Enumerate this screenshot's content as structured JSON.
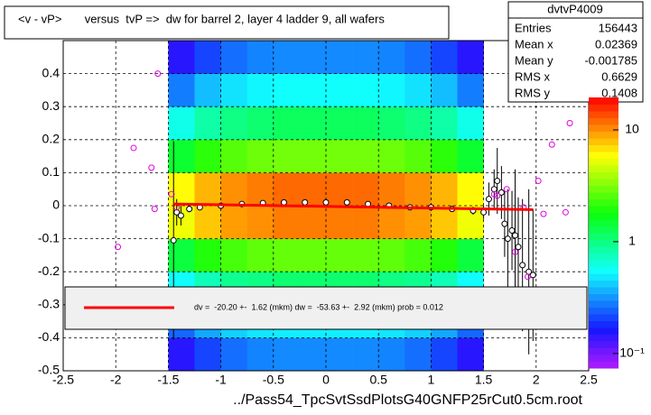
{
  "chart_data": {
    "type": "heatmap",
    "title": "<v - vP>       versus  tvP =>  dw for barrel 2, layer 4 ladder 9, all wafers",
    "x_label": "../Pass54_TpcSvtSsdPlotsG40GNFP25rCut0.5cm.root",
    "xlim": [
      -2.5,
      2.5
    ],
    "xticks": [
      -2.5,
      -2,
      -1.5,
      -1,
      -0.5,
      0,
      0.5,
      1,
      1.5,
      2,
      2.5
    ],
    "ylim": [
      -0.5,
      0.5
    ],
    "yticks": [
      -0.5,
      -0.4,
      -0.3,
      -0.2,
      -0.1,
      0,
      0.1,
      0.2,
      0.3,
      0.4
    ],
    "grid": true,
    "xbins": [
      -1.5,
      -1.25,
      -1,
      -0.75,
      -0.5,
      -0.25,
      0,
      0.25,
      0.5,
      0.75,
      1,
      1.25,
      1.5
    ],
    "ybins": [
      -0.5,
      -0.4,
      -0.3,
      -0.2,
      -0.1,
      0,
      0.1,
      0.2,
      0.3,
      0.4,
      0.5
    ],
    "z": [
      [
        0.15,
        0.21,
        0.26,
        0.29,
        0.3,
        0.3,
        0.3,
        0.3,
        0.29,
        0.26,
        0.21,
        0.15
      ],
      [
        0.25,
        0.35,
        0.43,
        0.48,
        0.5,
        0.5,
        0.5,
        0.5,
        0.48,
        0.43,
        0.35,
        0.25
      ],
      [
        0.55,
        0.77,
        0.94,
        1.0,
        1.1,
        1.1,
        1.1,
        1.1,
        1.0,
        0.94,
        0.77,
        0.55
      ],
      [
        1.4,
        2.0,
        2.4,
        2.7,
        2.8,
        2.8,
        2.8,
        2.8,
        2.7,
        2.4,
        2.0,
        1.4
      ],
      [
        5.5,
        7.7,
        9.4,
        10,
        11,
        11,
        11,
        11,
        10,
        9.4,
        7.7,
        5.5
      ],
      [
        6,
        8.4,
        10,
        11,
        12,
        12,
        12,
        12,
        11,
        10,
        8.4,
        6
      ],
      [
        1.5,
        2.1,
        2.6,
        2.9,
        3,
        3,
        3,
        3,
        2.9,
        2.6,
        2.1,
        1.5
      ],
      [
        0.6,
        0.84,
        1.0,
        1.1,
        1.2,
        1.2,
        1.2,
        1.2,
        1.1,
        1.0,
        0.84,
        0.6
      ],
      [
        0.28,
        0.39,
        0.47,
        0.52,
        0.55,
        0.55,
        0.55,
        0.55,
        0.52,
        0.47,
        0.39,
        0.28
      ],
      [
        0.15,
        0.21,
        0.26,
        0.29,
        0.3,
        0.3,
        0.3,
        0.3,
        0.29,
        0.26,
        0.21,
        0.15
      ]
    ],
    "zlim": [
      0.074,
      19.5
    ],
    "zscale": "log",
    "zticks": [
      10,
      1,
      {
        "value": 0.1,
        "label": "10⁻¹"
      }
    ],
    "series": [
      {
        "name": "profile",
        "color": "#000000",
        "x": [
          -1.45,
          -1.42,
          -1.38,
          -1.3,
          -1.2,
          -1.0,
          -0.8,
          -0.6,
          -0.4,
          -0.2,
          0,
          0.2,
          0.4,
          0.6,
          0.8,
          1.0,
          1.2,
          1.4,
          1.5,
          1.55,
          1.6,
          1.63,
          1.67,
          1.7,
          1.73,
          1.77,
          1.8,
          1.83,
          1.87,
          1.93,
          1.97
        ],
        "values": [
          -0.105,
          -0.02,
          -0.03,
          -0.01,
          -0.005,
          0.0,
          0.005,
          0.008,
          0.01,
          0.01,
          0.01,
          0.01,
          0.005,
          0.0,
          -0.005,
          -0.005,
          -0.01,
          -0.015,
          -0.02,
          0.02,
          0.05,
          0.075,
          0.04,
          -0.055,
          -0.1,
          -0.075,
          -0.09,
          -0.125,
          -0.18,
          -0.2,
          -0.21
        ],
        "errors": [
          0.3,
          0.04,
          0.03,
          0.01,
          0.008,
          0.005,
          0.004,
          0.004,
          0.004,
          0.004,
          0.004,
          0.004,
          0.004,
          0.004,
          0.004,
          0.005,
          0.008,
          0.012,
          0.02,
          0.05,
          0.06,
          0.1,
          0.08,
          0.1,
          0.15,
          0.12,
          0.2,
          0.15,
          0.2,
          0.25,
          0.2
        ]
      },
      {
        "name": "outliers",
        "color": "#e000e0",
        "x": [
          -1.98,
          -1.83,
          -1.6,
          -1.66,
          -1.63,
          -1.47,
          -1.42,
          1.6,
          1.63,
          1.72,
          1.8,
          1.88,
          1.92,
          2.02,
          2.07,
          2.15,
          2.28,
          2.32
        ],
        "values": [
          -0.125,
          0.175,
          0.4,
          0.115,
          -0.01,
          0.035,
          -0.005,
          0.035,
          0.03,
          0.05,
          -0.14,
          -0.005,
          -0.215,
          0.075,
          -0.025,
          0.185,
          -0.02,
          0.25
        ]
      }
    ],
    "fit": {
      "color": "#ff0000",
      "x": [
        -1.45,
        1.97
      ],
      "values": [
        0.005,
        -0.012
      ]
    },
    "fit_text": "dv =  -20.20 +-  1.62 (mkm) dw =  -53.63 +-  2.92 (mkm) prob = 0.012",
    "stats": {
      "title": "dvtvP4009",
      "rows": [
        [
          "Entries",
          "156443"
        ],
        [
          "Mean x",
          "0.02369"
        ],
        [
          "Mean y",
          "-0.001785"
        ],
        [
          "RMS x",
          "0.6629"
        ],
        [
          "RMS y",
          "0.1408"
        ]
      ]
    }
  }
}
